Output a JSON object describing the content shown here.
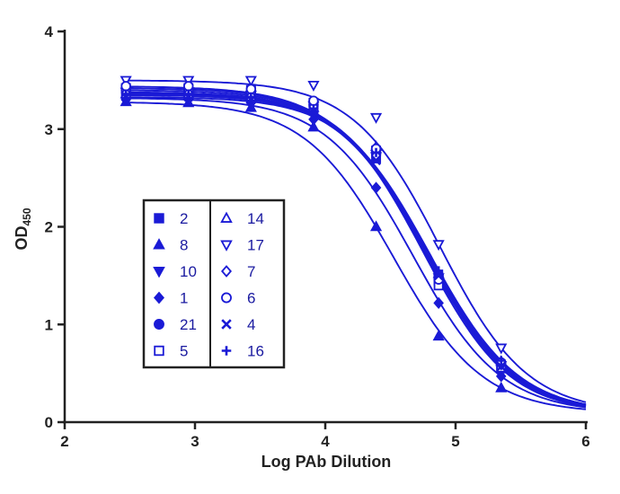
{
  "chart_data": {
    "type": "line",
    "title": "",
    "xlabel": "Log PAb Dilution",
    "ylabel_main": "OD",
    "ylabel_sub": "450",
    "xlim": [
      2,
      6
    ],
    "ylim": [
      0,
      4
    ],
    "x_ticks": [
      2,
      3,
      4,
      5,
      6
    ],
    "y_ticks": [
      0,
      1,
      2,
      3,
      4
    ],
    "grid": false,
    "legend_position": "center-left",
    "color": "#1a1ad6",
    "x": [
      2.47,
      2.95,
      3.43,
      3.91,
      4.39,
      4.87,
      5.35
    ],
    "series": [
      {
        "name": "2",
        "marker": "square-filled",
        "values": [
          3.35,
          3.35,
          3.32,
          3.2,
          2.7,
          1.45,
          0.55
        ]
      },
      {
        "name": "8",
        "marker": "triangle-up-filled",
        "values": [
          3.28,
          3.27,
          3.22,
          3.02,
          2.0,
          0.88,
          0.35
        ]
      },
      {
        "name": "10",
        "marker": "triangle-down-filled",
        "values": [
          3.38,
          3.38,
          3.35,
          3.24,
          2.72,
          1.48,
          0.58
        ]
      },
      {
        "name": "1",
        "marker": "diamond-filled",
        "values": [
          3.32,
          3.31,
          3.27,
          3.1,
          2.4,
          1.22,
          0.47
        ]
      },
      {
        "name": "21",
        "marker": "circle-filled",
        "values": [
          3.4,
          3.4,
          3.36,
          3.25,
          2.75,
          1.5,
          0.6
        ]
      },
      {
        "name": "5",
        "marker": "square-open",
        "values": [
          3.42,
          3.42,
          3.4,
          3.27,
          2.78,
          1.4,
          0.56
        ]
      },
      {
        "name": "14",
        "marker": "triangle-up-open",
        "values": [
          3.36,
          3.36,
          3.33,
          3.22,
          2.82,
          1.52,
          0.62
        ]
      },
      {
        "name": "17",
        "marker": "triangle-down-open",
        "values": [
          3.5,
          3.5,
          3.5,
          3.45,
          3.12,
          1.82,
          0.76
        ]
      },
      {
        "name": "7",
        "marker": "diamond-open",
        "values": [
          3.37,
          3.37,
          3.34,
          3.23,
          2.73,
          1.47,
          0.59
        ]
      },
      {
        "name": "6",
        "marker": "circle-open",
        "values": [
          3.44,
          3.44,
          3.41,
          3.29,
          2.8,
          1.46,
          0.61
        ]
      },
      {
        "name": "4",
        "marker": "x",
        "values": [
          3.33,
          3.33,
          3.3,
          3.18,
          2.68,
          1.5,
          0.57
        ]
      },
      {
        "name": "16",
        "marker": "plus",
        "values": [
          3.36,
          3.36,
          3.33,
          3.21,
          2.76,
          1.55,
          0.63
        ]
      }
    ]
  }
}
